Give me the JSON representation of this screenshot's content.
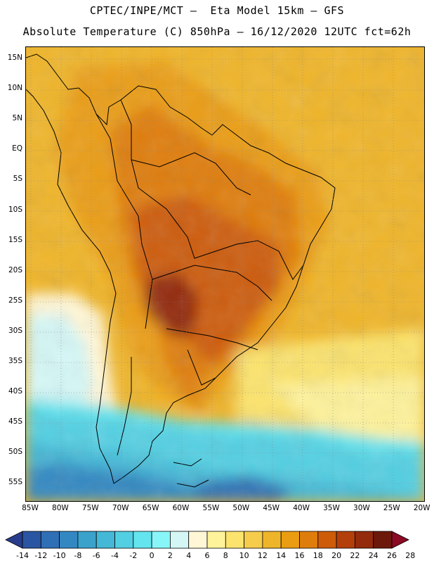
{
  "header": {
    "line1": "CPTEC/INPE/MCT –  Eta Model 15km – GFS",
    "line2": "Absolute Temperature (C) 850hPa – 16/12/2020 12UTC fct=62h"
  },
  "map": {
    "lat_labels": [
      "15N",
      "10N",
      "5N",
      "EQ",
      "5S",
      "10S",
      "15S",
      "20S",
      "25S",
      "30S",
      "35S",
      "40S",
      "45S",
      "50S",
      "55S"
    ],
    "lon_labels": [
      "85W",
      "80W",
      "75W",
      "70W",
      "65W",
      "60W",
      "55W",
      "50W",
      "45W",
      "40W",
      "35W",
      "30W",
      "25W",
      "20W"
    ],
    "colorbar_labels": [
      "-14",
      "-12",
      "-10",
      "-8",
      "-6",
      "-4",
      "-2",
      "0",
      "2",
      "4",
      "6",
      "8",
      "10",
      "12",
      "14",
      "16",
      "18",
      "20",
      "22",
      "24",
      "26",
      "28"
    ],
    "colorbar_colors": [
      "#283c8c",
      "#2a55a2",
      "#2f6fb5",
      "#3388c2",
      "#3ba2cc",
      "#44b8d6",
      "#52cfe2",
      "#63e4ee",
      "#88f6f8",
      "#d4f7f6",
      "#fff6d5",
      "#fef29a",
      "#fbe36d",
      "#f5cc4c",
      "#efb52a",
      "#ea9d12",
      "#df7d0c",
      "#cd5b08",
      "#b33f0a",
      "#932b0c",
      "#6c190c",
      "#8b0a24"
    ]
  }
}
